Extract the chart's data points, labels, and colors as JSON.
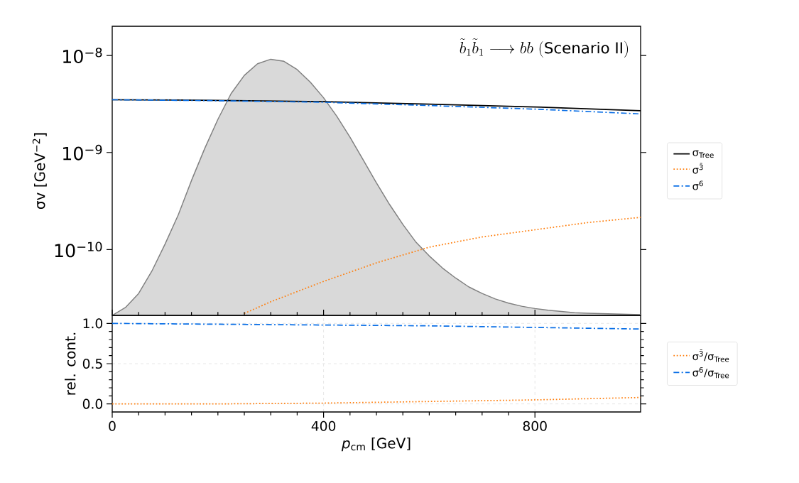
{
  "chart_data": [
    {
      "type": "line",
      "ylabel": "σv [GeV$^{−2}$]",
      "log": "y",
      "xlim": [
        0,
        1000
      ],
      "ylim": [
        2.1e-11,
        2e-08
      ],
      "yticks": [
        {
          "value": 1e-08,
          "label": "10$^{−8}$"
        },
        {
          "value": 1e-09,
          "label": "10$^{−9}$"
        },
        {
          "value": 1e-10,
          "label": "10$^{−10}$"
        }
      ],
      "tick_labels": "y",
      "legend": "right",
      "annotations": [
        "\\tilde{b}_1\\tilde{b}_1\\longrightarrow bb\\ \\mathrm{(Scenario\\ II)}"
      ],
      "series": [
        {
          "type": "area",
          "color": "#d9d9d9",
          "x": [
            0,
            25,
            50,
            75,
            100,
            125,
            150,
            175,
            200,
            225,
            250,
            275,
            300,
            325,
            350,
            375,
            400,
            425,
            450,
            475,
            500,
            525,
            550,
            575,
            600,
            625,
            650,
            675,
            700,
            725,
            750,
            775,
            800,
            825,
            850,
            875,
            900,
            925,
            950,
            975,
            1000
          ],
          "values": [
            2.1e-11,
            2.53e-11,
            3.53e-11,
            6e-11,
            1.14e-10,
            2.28e-10,
            5.15e-10,
            1.1e-09,
            2.2e-09,
            4.05e-09,
            6.24e-09,
            8.22e-09,
            9.15e-09,
            8.71e-09,
            7.16e-09,
            5.3e-09,
            3.67e-09,
            2.37e-09,
            1.44e-09,
            8.4e-10,
            4.87e-10,
            2.91e-10,
            1.82e-10,
            1.19e-10,
            8.6e-11,
            6.46e-11,
            5.09e-11,
            4.12e-11,
            3.53e-11,
            3.1e-11,
            2.81e-11,
            2.61e-11,
            2.47e-11,
            2.37e-11,
            2.3e-11,
            2.24e-11,
            2.21e-11,
            2.19e-11,
            2.17e-11,
            2.15e-11,
            2.14e-11
          ]
        },
        {
          "name": "σ$_{Tree}$",
          "color": "#000000",
          "line_style": "solid",
          "x": [
            0,
            200,
            400,
            600,
            800,
            1000
          ],
          "values": [
            3.5e-09,
            3.45e-09,
            3.35e-09,
            3.15e-09,
            2.95e-09,
            2.7e-09
          ]
        },
        {
          "name": "σ$^{3̄}$",
          "color": "#ff7f0e",
          "line_style": "dotted",
          "x": [
            250,
            300,
            400,
            500,
            600,
            700,
            800,
            900,
            1000
          ],
          "values": [
            2.2e-11,
            2.9e-11,
            4.7e-11,
            7.3e-11,
            1.06e-10,
            1.35e-10,
            1.6e-10,
            1.9e-10,
            2.15e-10
          ]
        },
        {
          "name": "σ$^{6}$",
          "color": "#0a6fe6",
          "line_style": "dashdot",
          "x": [
            0,
            200,
            400,
            600,
            800,
            1000
          ],
          "values": [
            3.5e-09,
            3.42e-09,
            3.3e-09,
            3.05e-09,
            2.8e-09,
            2.5e-09
          ]
        }
      ]
    },
    {
      "type": "line",
      "xlabel": "*p*$_{cm}$ [GeV]",
      "ylabel": "rel. cont.",
      "xlim": [
        0,
        1000
      ],
      "ylim": [
        -0.1,
        1.1
      ],
      "xticks": [
        0,
        400,
        800
      ],
      "yticks": [
        {
          "value": 0,
          "label": "0.0"
        },
        {
          "value": 0.5,
          "label": "0.5"
        },
        {
          "value": 1.0,
          "label": "1.0"
        }
      ],
      "grid": true,
      "legend": "right",
      "x": [
        0,
        200,
        400,
        600,
        800,
        1000
      ],
      "series": [
        {
          "name": "σ$^{3̄}$/σ$_{Tree}$",
          "color": "#ff7f0e",
          "line_style": "dotted",
          "values": [
            0.0,
            0.0,
            0.01,
            0.03,
            0.05,
            0.08
          ]
        },
        {
          "name": "σ$^{6}$/σ$_{Tree}$",
          "color": "#0a6fe6",
          "line_style": "dashdot",
          "values": [
            1.0,
            0.99,
            0.98,
            0.97,
            0.95,
            0.93
          ]
        }
      ]
    }
  ]
}
